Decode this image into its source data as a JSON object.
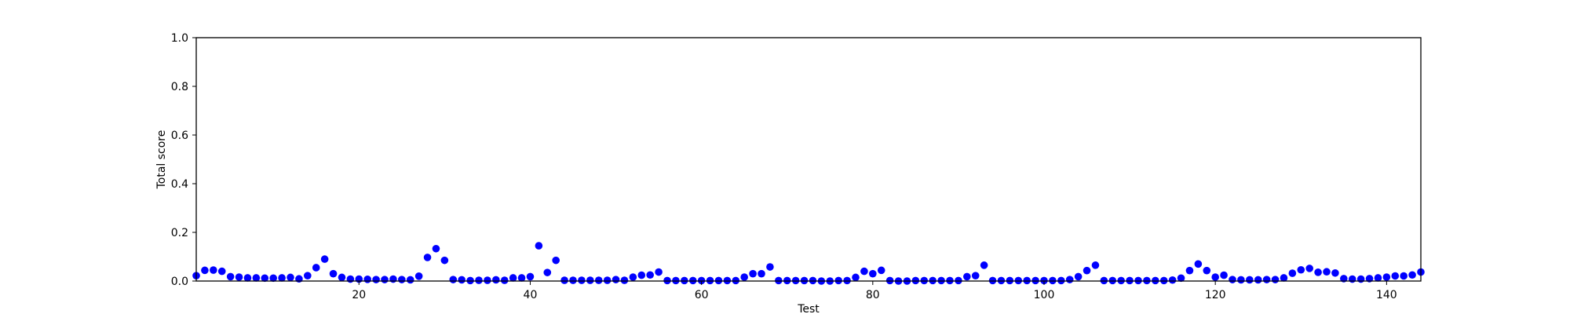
{
  "chart_data": {
    "type": "scatter",
    "xlabel": "Test",
    "ylabel": "Total score",
    "xlim": [
      1,
      144
    ],
    "ylim": [
      0.0,
      1.0
    ],
    "x_ticks": [
      20,
      40,
      60,
      80,
      100,
      120,
      140
    ],
    "y_ticks": [
      0.0,
      0.2,
      0.4,
      0.6,
      0.8,
      1.0
    ],
    "y_tick_labels": [
      "0.0",
      "0.2",
      "0.4",
      "0.6",
      "0.8",
      "1.0"
    ],
    "grid": false,
    "marker_color": "#0000ff",
    "series": [
      {
        "x": [
          1,
          2,
          3,
          4,
          5,
          6,
          7,
          8,
          9,
          10,
          11,
          12,
          13,
          14,
          15,
          16,
          17,
          18,
          19,
          20,
          21,
          22,
          23,
          24,
          25,
          26,
          27,
          28,
          29,
          30,
          31,
          32,
          33,
          34,
          35,
          36,
          37,
          38,
          39,
          40,
          41,
          42,
          43,
          44,
          45,
          46,
          47,
          48,
          49,
          50,
          51,
          52,
          53,
          54,
          55,
          56,
          57,
          58,
          59,
          60,
          61,
          62,
          63,
          64,
          65,
          66,
          67,
          68,
          69,
          70,
          71,
          72,
          73,
          74,
          75,
          76,
          77,
          78,
          79,
          80,
          81,
          82,
          83,
          84,
          85,
          86,
          87,
          88,
          89,
          90,
          91,
          92,
          93,
          94,
          95,
          96,
          97,
          98,
          99,
          100,
          101,
          102,
          103,
          104,
          105,
          106,
          107,
          108,
          109,
          110,
          111,
          112,
          113,
          114,
          115,
          116,
          117,
          118,
          119,
          120,
          121,
          122,
          123,
          124,
          125,
          126,
          127,
          128,
          129,
          130,
          131,
          132,
          133,
          134,
          135,
          136,
          137,
          138,
          139,
          140,
          141,
          142,
          143,
          144
        ],
        "y": [
          0.022,
          0.044,
          0.045,
          0.04,
          0.018,
          0.016,
          0.013,
          0.013,
          0.012,
          0.012,
          0.013,
          0.015,
          0.009,
          0.022,
          0.055,
          0.09,
          0.03,
          0.015,
          0.008,
          0.008,
          0.007,
          0.006,
          0.006,
          0.008,
          0.006,
          0.005,
          0.02,
          0.097,
          0.133,
          0.085,
          0.006,
          0.005,
          0.002,
          0.003,
          0.003,
          0.005,
          0.003,
          0.013,
          0.013,
          0.018,
          0.145,
          0.035,
          0.085,
          0.003,
          0.003,
          0.003,
          0.003,
          0.003,
          0.003,
          0.006,
          0.003,
          0.016,
          0.024,
          0.025,
          0.037,
          0.002,
          0.002,
          0.002,
          0.002,
          0.002,
          0.002,
          0.002,
          0.002,
          0.002,
          0.016,
          0.03,
          0.03,
          0.058,
          0.002,
          0.002,
          0.002,
          0.002,
          0.002,
          0.0,
          0.0,
          0.002,
          0.002,
          0.015,
          0.04,
          0.03,
          0.044,
          0.002,
          0.0,
          0.0,
          0.002,
          0.002,
          0.002,
          0.002,
          0.002,
          0.002,
          0.018,
          0.022,
          0.065,
          0.002,
          0.002,
          0.002,
          0.002,
          0.002,
          0.002,
          0.002,
          0.002,
          0.002,
          0.006,
          0.018,
          0.043,
          0.065,
          0.002,
          0.002,
          0.002,
          0.002,
          0.002,
          0.002,
          0.002,
          0.002,
          0.004,
          0.012,
          0.043,
          0.07,
          0.043,
          0.016,
          0.024,
          0.006,
          0.005,
          0.005,
          0.005,
          0.006,
          0.006,
          0.013,
          0.032,
          0.046,
          0.052,
          0.036,
          0.038,
          0.033,
          0.01,
          0.008,
          0.008,
          0.01,
          0.013,
          0.016,
          0.021,
          0.021,
          0.025,
          0.037
        ]
      }
    ]
  }
}
